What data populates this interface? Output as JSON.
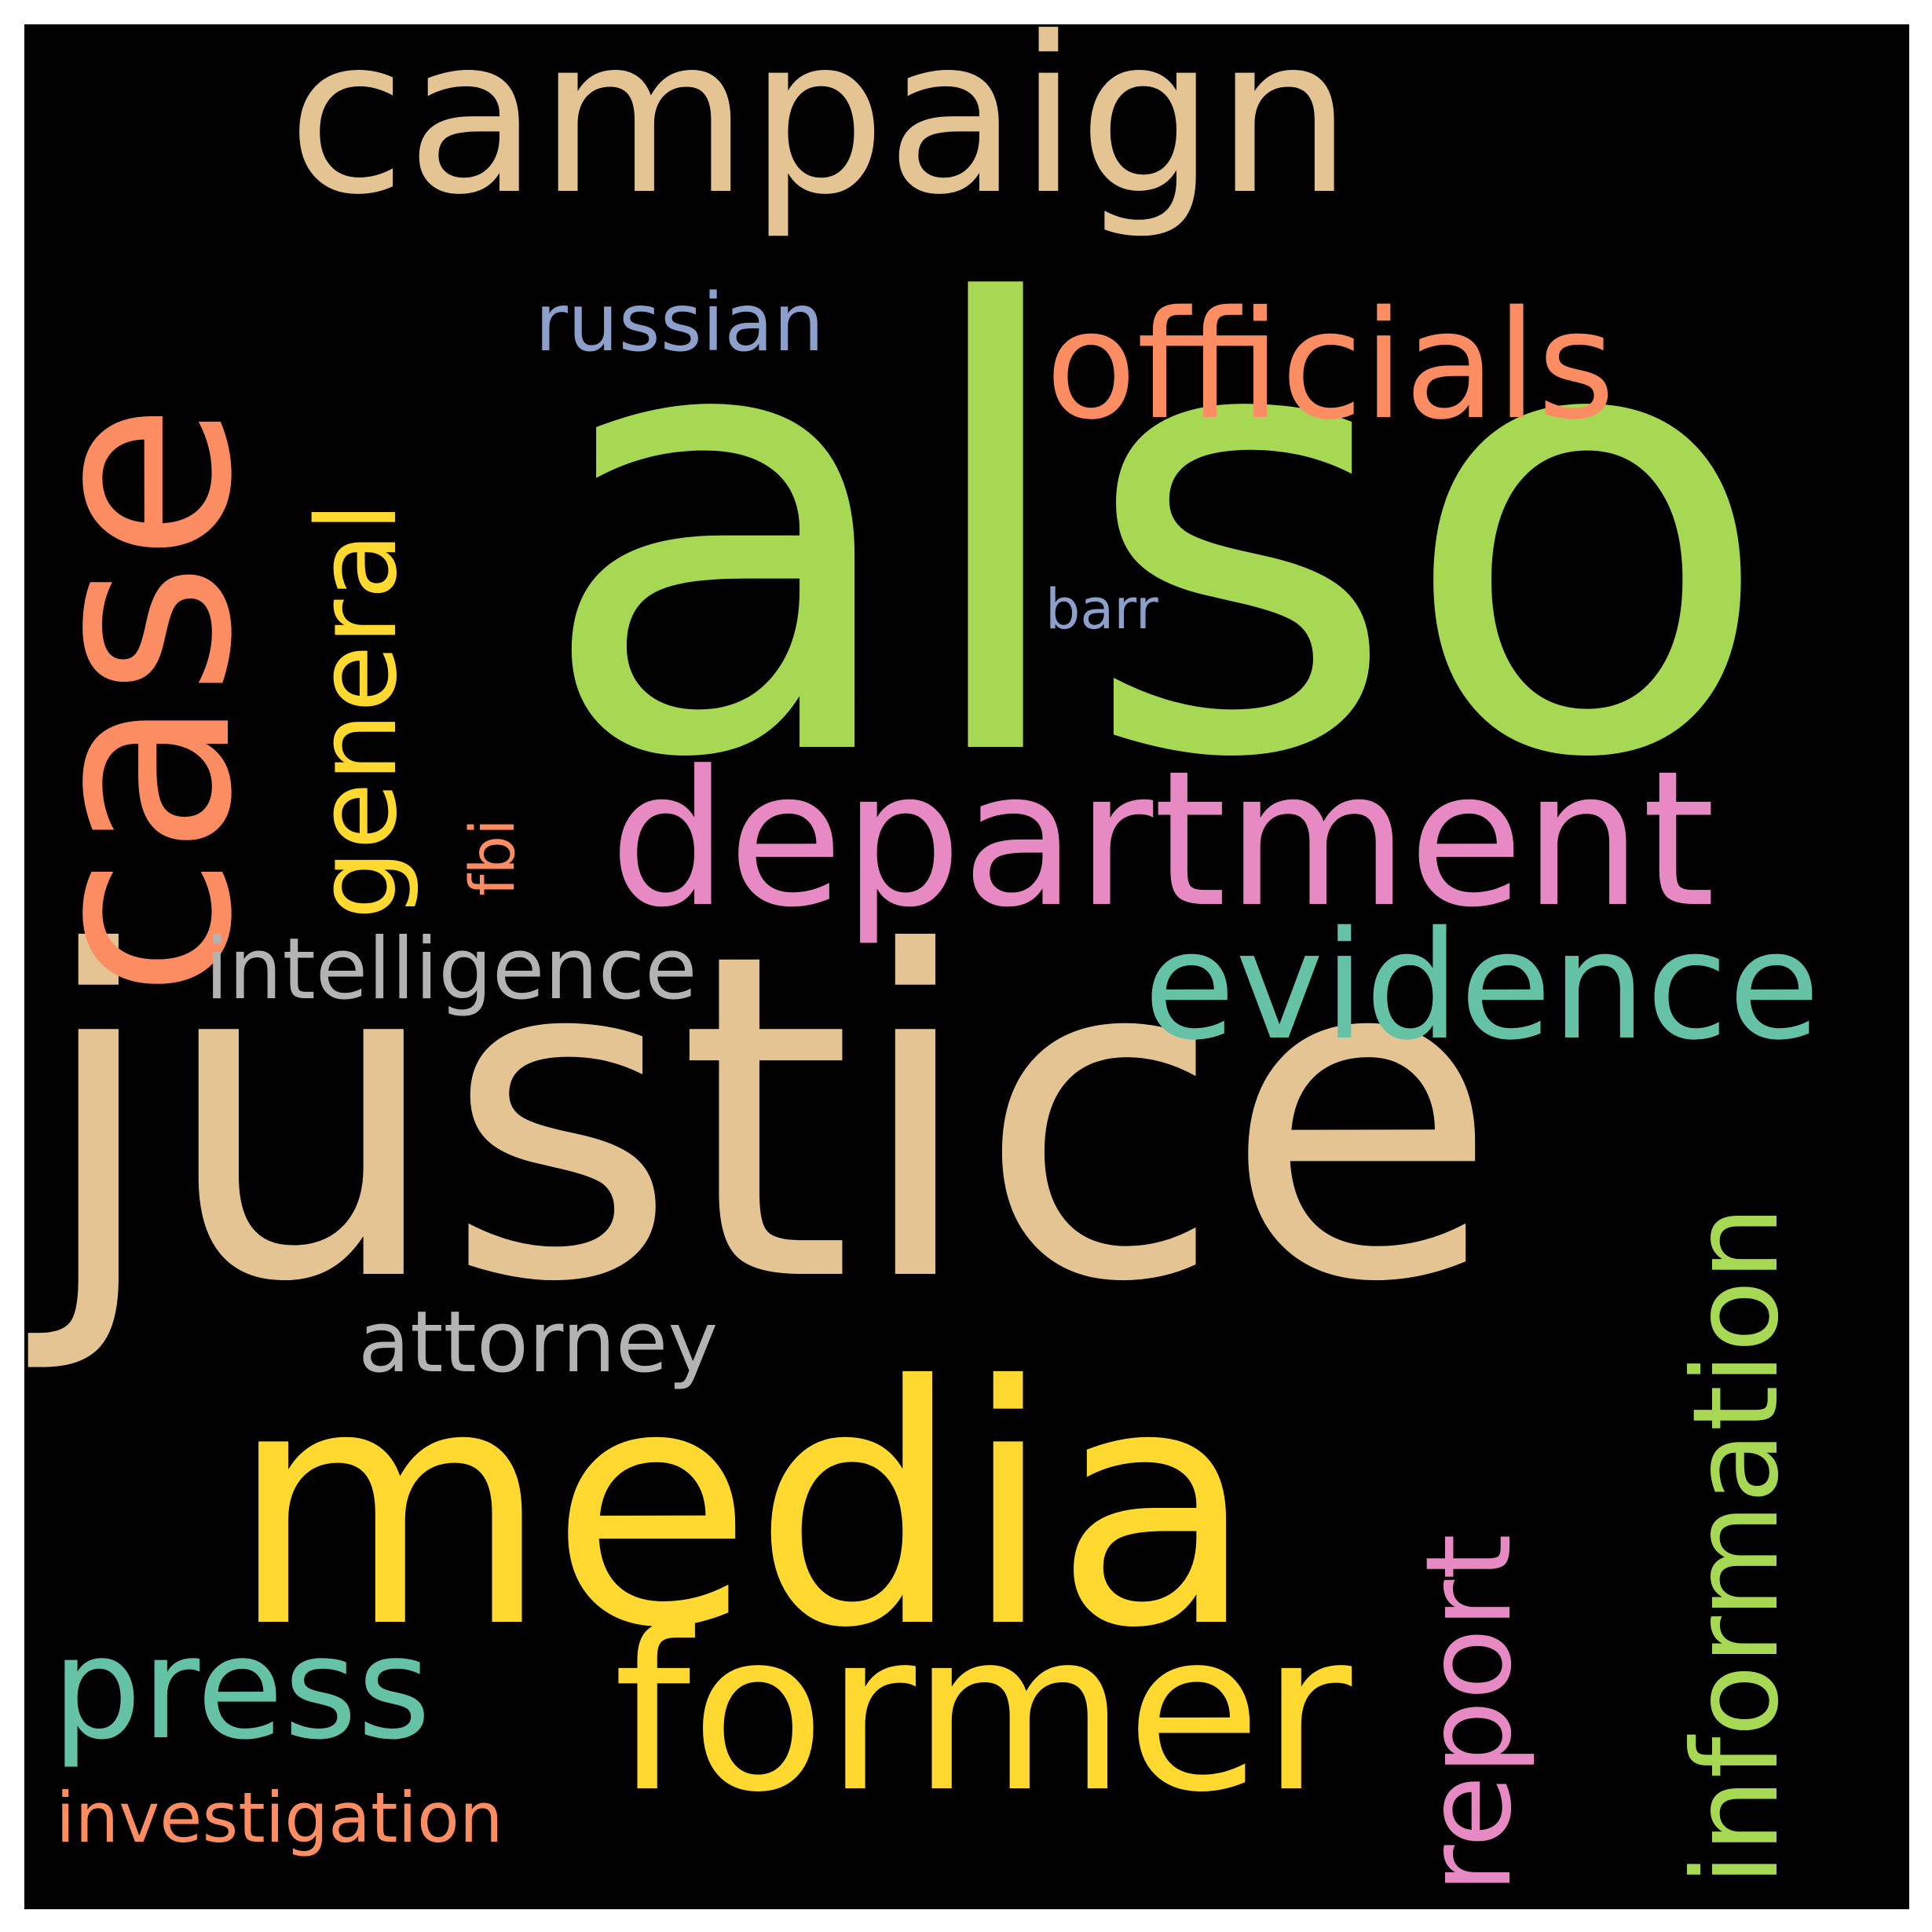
{
  "background": "#000000",
  "frame": "#ffffff",
  "words": [
    {
      "key": "also",
      "text": "also",
      "color": "#a6d854"
    },
    {
      "key": "justice",
      "text": "justice",
      "color": "#e5c494"
    },
    {
      "key": "media",
      "text": "media",
      "color": "#ffd92f"
    },
    {
      "key": "case",
      "text": "case",
      "color": "#fc8d62"
    },
    {
      "key": "campaign",
      "text": "campaign",
      "color": "#e5c494"
    },
    {
      "key": "department",
      "text": "department",
      "color": "#e78ac3"
    },
    {
      "key": "former",
      "text": "former",
      "color": "#ffd92f"
    },
    {
      "key": "officials",
      "text": "officials",
      "color": "#fc8d62"
    },
    {
      "key": "evidence",
      "text": "evidence",
      "color": "#66c2a5"
    },
    {
      "key": "general",
      "text": "general",
      "color": "#ffd92f"
    },
    {
      "key": "information",
      "text": "information",
      "color": "#a6d854"
    },
    {
      "key": "report",
      "text": "report",
      "color": "#e78ac3"
    },
    {
      "key": "press",
      "text": "press",
      "color": "#66c2a5"
    },
    {
      "key": "intelligence",
      "text": "intelligence",
      "color": "#b3b3b3"
    },
    {
      "key": "attorney",
      "text": "attorney",
      "color": "#b3b3b3"
    },
    {
      "key": "russian",
      "text": "russian",
      "color": "#8da0cb"
    },
    {
      "key": "investigation",
      "text": "investigation",
      "color": "#fc8d62"
    },
    {
      "key": "fbi",
      "text": "fbi",
      "color": "#fc8d62"
    },
    {
      "key": "barr",
      "text": "barr",
      "color": "#8da0cb"
    }
  ]
}
